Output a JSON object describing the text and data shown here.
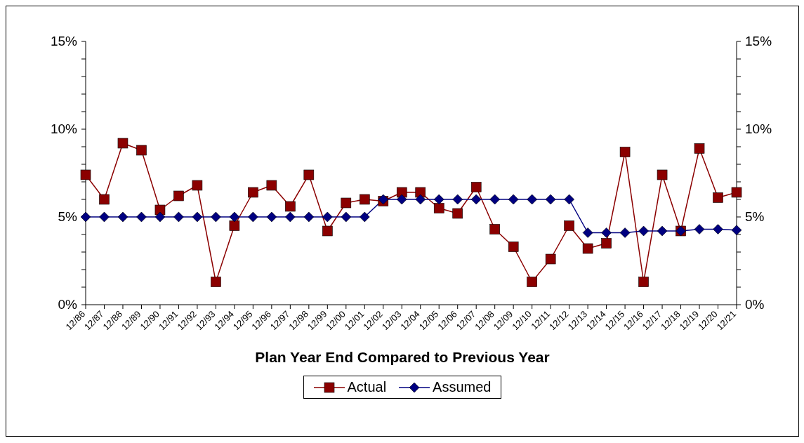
{
  "chart_data": {
    "type": "line",
    "xlabel": "Plan Year End Compared to Previous Year",
    "categories": [
      "12/86",
      "12/87",
      "12/88",
      "12/89",
      "12/90",
      "12/91",
      "12/92",
      "12/93",
      "12/94",
      "12/95",
      "12/96",
      "12/97",
      "12/98",
      "12/99",
      "12/00",
      "12/01",
      "12/02",
      "12/03",
      "12/04",
      "12/05",
      "12/06",
      "12/07",
      "12/08",
      "12/09",
      "12/10",
      "12/11",
      "12/12",
      "12/13",
      "12/14",
      "12/15",
      "12/16",
      "12/17",
      "12/18",
      "12/19",
      "12/20",
      "12/21"
    ],
    "series": [
      {
        "name": "Actual",
        "color": "#8b0000",
        "marker": "square",
        "values": [
          7.4,
          6.0,
          9.2,
          8.8,
          5.4,
          6.2,
          6.8,
          1.3,
          4.5,
          6.4,
          6.8,
          5.6,
          7.4,
          4.2,
          5.8,
          6.0,
          5.9,
          6.4,
          6.4,
          5.5,
          5.2,
          6.7,
          4.3,
          3.3,
          1.3,
          2.6,
          4.5,
          3.2,
          3.5,
          8.7,
          1.3,
          7.4,
          4.2,
          8.9,
          6.1,
          6.4
        ]
      },
      {
        "name": "Assumed",
        "color": "#000080",
        "marker": "diamond",
        "values": [
          5.0,
          5.0,
          5.0,
          5.0,
          5.0,
          5.0,
          5.0,
          5.0,
          5.0,
          5.0,
          5.0,
          5.0,
          5.0,
          5.0,
          5.0,
          5.0,
          6.0,
          6.0,
          6.0,
          6.0,
          6.0,
          6.0,
          6.0,
          6.0,
          6.0,
          6.0,
          6.0,
          4.1,
          4.1,
          4.1,
          4.2,
          4.2,
          4.2,
          4.3,
          4.3,
          4.25
        ]
      }
    ],
    "ylim": [
      0,
      15
    ],
    "yticks": [
      {
        "value": 0,
        "label": "0%"
      },
      {
        "value": 1,
        "label": null
      },
      {
        "value": 2,
        "label": null
      },
      {
        "value": 3,
        "label": null
      },
      {
        "value": 4,
        "label": null
      },
      {
        "value": 5,
        "label": "5%"
      },
      {
        "value": 6,
        "label": null
      },
      {
        "value": 7,
        "label": null
      },
      {
        "value": 8,
        "label": null
      },
      {
        "value": 9,
        "label": null
      },
      {
        "value": 10,
        "label": "10%"
      },
      {
        "value": 11,
        "label": null
      },
      {
        "value": 12,
        "label": null
      },
      {
        "value": 13,
        "label": null
      },
      {
        "value": 14,
        "label": null
      },
      {
        "value": 15,
        "label": "15%"
      }
    ],
    "y2lim": [
      0,
      15
    ],
    "y2ticks": [
      {
        "value": 0,
        "label": "0%"
      },
      {
        "value": 1,
        "label": null
      },
      {
        "value": 2,
        "label": null
      },
      {
        "value": 3,
        "label": null
      },
      {
        "value": 4,
        "label": null
      },
      {
        "value": 5,
        "label": "5%"
      },
      {
        "value": 6,
        "label": null
      },
      {
        "value": 7,
        "label": null
      },
      {
        "value": 8,
        "label": null
      },
      {
        "value": 9,
        "label": null
      },
      {
        "value": 10,
        "label": "10%"
      },
      {
        "value": 11,
        "label": null
      },
      {
        "value": 12,
        "label": null
      },
      {
        "value": 13,
        "label": null
      },
      {
        "value": 14,
        "label": null
      },
      {
        "value": 15,
        "label": "15%"
      }
    ],
    "legend": "bottom",
    "line_style": "solid"
  }
}
